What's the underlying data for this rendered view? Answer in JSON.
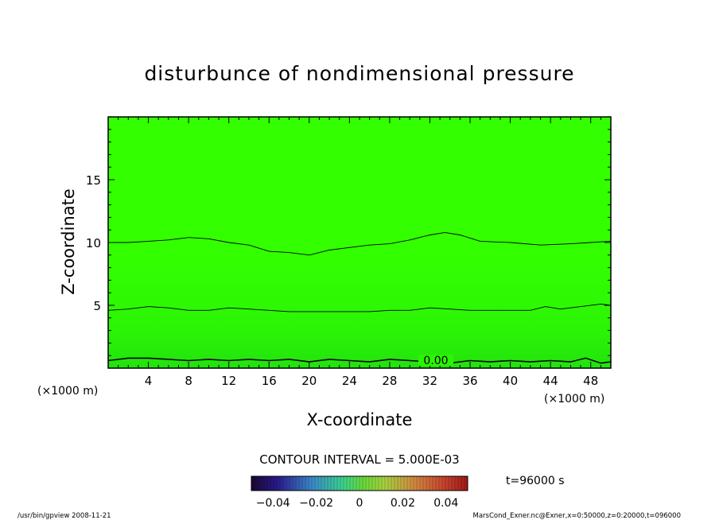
{
  "chart_data": {
    "type": "contour",
    "title": "disturbunce of nondimensional pressure",
    "xlabel": "X-coordinate",
    "ylabel": "Z-coordinate",
    "x_unit": "(×1000 m)",
    "y_unit": "(×1000 m)",
    "xlim": [
      0,
      50
    ],
    "ylim": [
      0,
      20
    ],
    "x_ticks": [
      4,
      8,
      12,
      16,
      20,
      24,
      28,
      32,
      36,
      40,
      44,
      48
    ],
    "y_ticks": [
      5,
      10,
      15
    ],
    "contour_interval_label": "CONTOUR INTERVAL = 5.000E-03",
    "time_label": "t=96000 s",
    "colorbar_ticks": [
      "-0.04",
      "-0.02",
      "0",
      "0.02",
      "0.04"
    ],
    "colorbar_range": [
      -0.05,
      0.05
    ],
    "contour_line_label": "0.00",
    "contours": [
      {
        "name": "upper",
        "points": [
          [
            0,
            10.0
          ],
          [
            2,
            10.0
          ],
          [
            4,
            10.1
          ],
          [
            6,
            10.2
          ],
          [
            8,
            10.4
          ],
          [
            10,
            10.3
          ],
          [
            12,
            10.0
          ],
          [
            14,
            9.8
          ],
          [
            16,
            9.3
          ],
          [
            18,
            9.2
          ],
          [
            20,
            9.0
          ],
          [
            22,
            9.4
          ],
          [
            24,
            9.6
          ],
          [
            26,
            9.8
          ],
          [
            28,
            9.9
          ],
          [
            30,
            10.2
          ],
          [
            32,
            10.6
          ],
          [
            33.5,
            10.8
          ],
          [
            35,
            10.6
          ],
          [
            37,
            10.1
          ],
          [
            40,
            10.0
          ],
          [
            43,
            9.8
          ],
          [
            46,
            9.9
          ],
          [
            48,
            10.0
          ],
          [
            50,
            10.1
          ]
        ]
      },
      {
        "name": "middle",
        "points": [
          [
            0,
            4.6
          ],
          [
            2,
            4.7
          ],
          [
            4,
            4.9
          ],
          [
            6,
            4.8
          ],
          [
            8,
            4.6
          ],
          [
            10,
            4.6
          ],
          [
            12,
            4.8
          ],
          [
            14,
            4.7
          ],
          [
            16,
            4.6
          ],
          [
            18,
            4.5
          ],
          [
            20,
            4.5
          ],
          [
            22,
            4.5
          ],
          [
            24,
            4.5
          ],
          [
            26,
            4.5
          ],
          [
            28,
            4.6
          ],
          [
            30,
            4.6
          ],
          [
            32,
            4.8
          ],
          [
            34,
            4.7
          ],
          [
            36,
            4.6
          ],
          [
            38,
            4.6
          ],
          [
            40,
            4.6
          ],
          [
            42,
            4.6
          ],
          [
            43.5,
            4.9
          ],
          [
            45,
            4.7
          ],
          [
            47,
            4.9
          ],
          [
            49,
            5.1
          ],
          [
            50,
            5.0
          ]
        ]
      },
      {
        "name": "zero",
        "points": [
          [
            0,
            0.6
          ],
          [
            2,
            0.8
          ],
          [
            4,
            0.8
          ],
          [
            6,
            0.7
          ],
          [
            8,
            0.6
          ],
          [
            10,
            0.7
          ],
          [
            12,
            0.6
          ],
          [
            14,
            0.7
          ],
          [
            16,
            0.6
          ],
          [
            18,
            0.7
          ],
          [
            20,
            0.5
          ],
          [
            22,
            0.7
          ],
          [
            24,
            0.6
          ],
          [
            26,
            0.5
          ],
          [
            28,
            0.7
          ],
          [
            30,
            0.6
          ],
          [
            32,
            0.5
          ],
          [
            34,
            0.4
          ],
          [
            36,
            0.6
          ],
          [
            38,
            0.5
          ],
          [
            40,
            0.6
          ],
          [
            42,
            0.5
          ],
          [
            44,
            0.6
          ],
          [
            46,
            0.5
          ],
          [
            47.5,
            0.8
          ],
          [
            49,
            0.4
          ],
          [
            50,
            0.5
          ]
        ]
      }
    ]
  },
  "footer": {
    "left": "/usr/bin/gpview   2008-11-21",
    "right": "MarsCond_Exner.nc@Exner,x=0:50000,z=0:20000,t=096000"
  },
  "colors": {
    "plot_fill_top": "#33ff00",
    "plot_fill_bottom": "#21e30c",
    "line": "#000000"
  }
}
